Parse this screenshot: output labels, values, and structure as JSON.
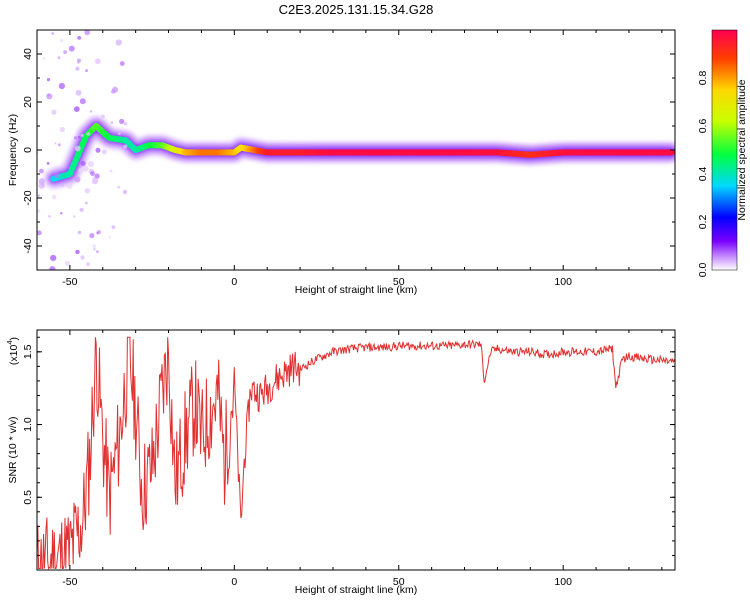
{
  "figure": {
    "title": "C2E3.2025.131.15.34.G28"
  },
  "chart_data": [
    {
      "type": "heatmap",
      "xlabel": "Height of straight line (km)",
      "ylabel": "Frequency (Hz)",
      "xlim": [
        -60,
        134
      ],
      "ylim": [
        -50,
        50
      ],
      "xticks": [
        -50,
        0,
        50,
        100
      ],
      "yticks": [
        -40,
        -20,
        0,
        20,
        40
      ],
      "colorbar": {
        "label": "Normalized spectral amplitude",
        "range": [
          0,
          1
        ],
        "ticks": [
          0.0,
          0.2,
          0.4,
          0.6,
          0.8
        ],
        "tick_labels": [
          "0.0",
          "0.2",
          "0.4",
          "0.6",
          "0.8"
        ],
        "colormap": [
          "#ffffff",
          "#cc99ff",
          "#7a00ff",
          "#0000ff",
          "#00d8ff",
          "#00ff40",
          "#c8ff00",
          "#ffd800",
          "#ff4000",
          "#ff0050"
        ]
      },
      "ridge_points": [
        {
          "x": -55,
          "f": -12,
          "a": 0.45
        },
        {
          "x": -50,
          "f": -10,
          "a": 0.5
        },
        {
          "x": -45,
          "f": 6,
          "a": 0.55
        },
        {
          "x": -42,
          "f": 10,
          "a": 0.6
        },
        {
          "x": -38,
          "f": 5,
          "a": 0.55
        },
        {
          "x": -33,
          "f": 4,
          "a": 0.5
        },
        {
          "x": -30,
          "f": 0,
          "a": 0.5
        },
        {
          "x": -26,
          "f": 2,
          "a": 0.55
        },
        {
          "x": -22,
          "f": 2,
          "a": 0.6
        },
        {
          "x": -18,
          "f": 0,
          "a": 0.7
        },
        {
          "x": -15,
          "f": -1,
          "a": 0.8
        },
        {
          "x": -10,
          "f": -1,
          "a": 0.85
        },
        {
          "x": -5,
          "f": -1,
          "a": 0.85
        },
        {
          "x": 0,
          "f": -1,
          "a": 0.8
        },
        {
          "x": 2,
          "f": 1,
          "a": 0.75
        },
        {
          "x": 10,
          "f": -1,
          "a": 0.95
        },
        {
          "x": 20,
          "f": -1,
          "a": 0.95
        },
        {
          "x": 30,
          "f": -1,
          "a": 0.98
        },
        {
          "x": 40,
          "f": -1,
          "a": 0.98
        },
        {
          "x": 50,
          "f": -1,
          "a": 0.98
        },
        {
          "x": 60,
          "f": -1,
          "a": 0.98
        },
        {
          "x": 70,
          "f": -1,
          "a": 0.98
        },
        {
          "x": 80,
          "f": -1,
          "a": 0.97
        },
        {
          "x": 90,
          "f": -2,
          "a": 0.92
        },
        {
          "x": 100,
          "f": -1,
          "a": 0.97
        },
        {
          "x": 110,
          "f": -1,
          "a": 0.98
        },
        {
          "x": 120,
          "f": -1,
          "a": 0.98
        },
        {
          "x": 133,
          "f": -1,
          "a": 0.98
        }
      ]
    },
    {
      "type": "line",
      "xlabel": "Height of straight line (km)",
      "ylabel": "SNR (10 * v/v)",
      "y_multiplier_label": "(x10",
      "y_multiplier_exp": "4",
      "y_multiplier_close": ")",
      "xlim": [
        -60,
        134
      ],
      "ylim": [
        0,
        1.65
      ],
      "xticks": [
        -50,
        0,
        50,
        100
      ],
      "yticks": [
        0.5,
        1.0,
        1.5
      ],
      "ytick_labels": [
        "0.5",
        "1.0",
        "1.5"
      ],
      "color": "#e03030",
      "series": [
        {
          "x": [
            -60,
            -55,
            -50,
            -46,
            -44,
            -42,
            -40,
            -38,
            -35,
            -32,
            -30,
            -28,
            -25,
            -22,
            -20,
            -18,
            -15,
            -12,
            -10,
            -8,
            -5,
            -3,
            0,
            2,
            3,
            5,
            8,
            10,
            12,
            15,
            18,
            20,
            25,
            30,
            35,
            40,
            45,
            50,
            55,
            60,
            65,
            70,
            75,
            76,
            78,
            80,
            85,
            90,
            95,
            100,
            105,
            110,
            115,
            116,
            118,
            120,
            125,
            130,
            134
          ],
          "y": [
            0.02,
            0.06,
            0.12,
            0.35,
            0.75,
            1.5,
            0.9,
            0.5,
            0.9,
            1.5,
            1.1,
            0.55,
            0.7,
            1.2,
            1.5,
            0.6,
            0.9,
            1.15,
            0.9,
            1.05,
            1.2,
            0.75,
            1.3,
            0.3,
            0.75,
            1.25,
            1.2,
            1.25,
            1.3,
            1.35,
            1.4,
            1.38,
            1.45,
            1.5,
            1.52,
            1.53,
            1.53,
            1.54,
            1.54,
            1.54,
            1.54,
            1.55,
            1.55,
            1.3,
            1.5,
            1.52,
            1.5,
            1.5,
            1.48,
            1.5,
            1.5,
            1.5,
            1.52,
            1.25,
            1.45,
            1.47,
            1.45,
            1.44,
            1.43
          ]
        }
      ]
    }
  ]
}
